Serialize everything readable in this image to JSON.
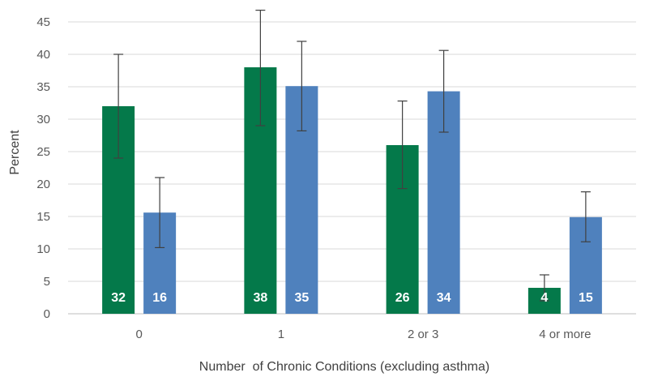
{
  "chart_data": {
    "type": "bar",
    "title": "",
    "xlabel": "Number  of Chronic Conditions (excluding asthma)",
    "ylabel": "Percent",
    "ylim": [
      0,
      45
    ],
    "yticks": [
      0,
      5,
      10,
      15,
      20,
      25,
      30,
      35,
      40,
      45
    ],
    "categories": [
      "0",
      "1",
      "2 or 3",
      "4 or more"
    ],
    "grid": true,
    "legend": "none",
    "series": [
      {
        "color": "#04794a",
        "values": [
          32,
          38,
          26,
          4
        ],
        "labels": [
          "32",
          "38",
          "26",
          "4"
        ],
        "error_low": [
          24,
          29,
          19.3,
          2
        ],
        "error_high": [
          40,
          46.8,
          32.8,
          6
        ]
      },
      {
        "color": "#4f81bd",
        "values": [
          15.6,
          35.1,
          34.3,
          14.9
        ],
        "labels": [
          "16",
          "35",
          "34",
          "15"
        ],
        "error_low": [
          10.2,
          28.2,
          28,
          11.1
        ],
        "error_high": [
          21,
          42,
          40.6,
          18.8
        ]
      }
    ]
  }
}
